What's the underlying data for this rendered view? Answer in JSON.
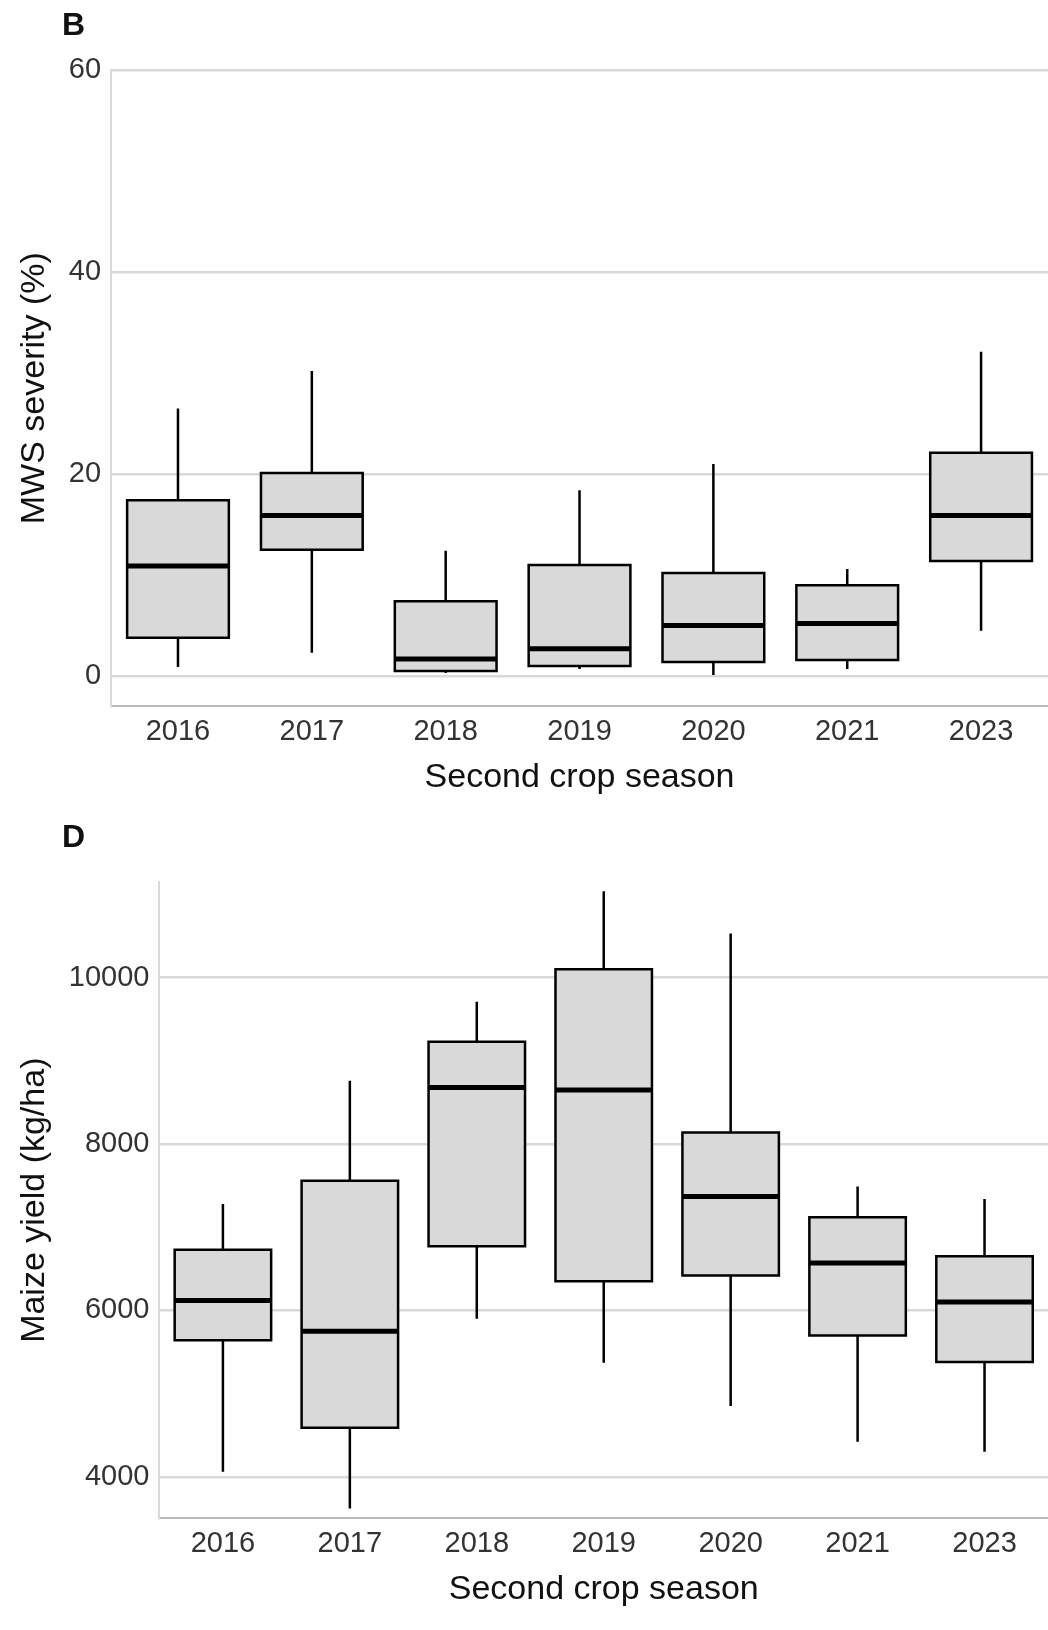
{
  "chart_data": [
    {
      "type": "box",
      "annotations": [
        "B"
      ],
      "xlabel": "Second crop season",
      "ylabel": "MWS severity (%)",
      "categories": [
        "2016",
        "2017",
        "2018",
        "2019",
        "2020",
        "2021",
        "2023"
      ],
      "boxes": [
        {
          "low": 0.9,
          "q1": 3.8,
          "median": 10.9,
          "q3": 17.4,
          "high": 26.5
        },
        {
          "low": 2.3,
          "q1": 12.5,
          "median": 15.9,
          "q3": 20.1,
          "high": 30.2
        },
        {
          "low": 0.3,
          "q1": 0.5,
          "median": 1.7,
          "q3": 7.4,
          "high": 12.4
        },
        {
          "low": 0.7,
          "q1": 1.0,
          "median": 2.7,
          "q3": 11.0,
          "high": 18.4
        },
        {
          "low": 0.1,
          "q1": 1.4,
          "median": 5.0,
          "q3": 10.2,
          "high": 21.0
        },
        {
          "low": 0.7,
          "q1": 1.6,
          "median": 5.2,
          "q3": 9.0,
          "high": 10.6
        },
        {
          "low": 4.5,
          "q1": 11.4,
          "median": 15.9,
          "q3": 22.1,
          "high": 32.1
        }
      ],
      "color": "#d9d9d9",
      "ylim": [
        -3,
        60
      ],
      "yticks": [
        0,
        20,
        40,
        60
      ],
      "grid": "y",
      "legend": false
    },
    {
      "type": "box",
      "annotations": [
        "D"
      ],
      "xlabel": "Second crop season",
      "ylabel": "Maize yield (kg/ha)",
      "categories": [
        "2016",
        "2017",
        "2018",
        "2019",
        "2020",
        "2021",
        "2023"
      ],
      "boxes": [
        {
          "low": 4060,
          "q1": 5640,
          "median": 6120,
          "q3": 6730,
          "high": 7280
        },
        {
          "low": 3620,
          "q1": 4590,
          "median": 5750,
          "q3": 7560,
          "high": 8760
        },
        {
          "low": 5900,
          "q1": 6770,
          "median": 8680,
          "q3": 9230,
          "high": 9710
        },
        {
          "low": 5370,
          "q1": 6350,
          "median": 8650,
          "q3": 10100,
          "high": 11040
        },
        {
          "low": 4850,
          "q1": 6420,
          "median": 7370,
          "q3": 8140,
          "high": 10530
        },
        {
          "low": 4420,
          "q1": 5700,
          "median": 6570,
          "q3": 7120,
          "high": 7490
        },
        {
          "low": 4300,
          "q1": 5380,
          "median": 6100,
          "q3": 6650,
          "high": 7340
        }
      ],
      "color": "#d9d9d9",
      "ylim": [
        3500,
        11150
      ],
      "yticks": [
        4000,
        6000,
        8000,
        10000
      ],
      "grid": "y",
      "legend": false
    }
  ]
}
